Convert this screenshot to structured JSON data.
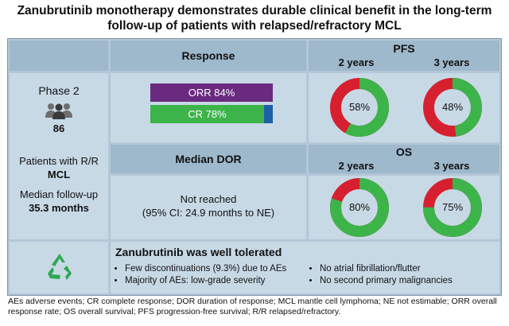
{
  "title": "Zanubrutinib monotherapy demonstrates durable clinical benefit in the long-term follow-up of patients with relapsed/refractory MCL",
  "response_header": "Response",
  "pfs": {
    "header": "PFS",
    "y2_label": "2 years",
    "y3_label": "3 years",
    "y2_value": "58%",
    "y3_value": "48%",
    "y2_fraction": 0.58,
    "y3_fraction": 0.48
  },
  "os": {
    "header": "OS",
    "y2_label": "2 years",
    "y3_label": "3 years",
    "y2_value": "80%",
    "y3_value": "75%",
    "y2_fraction": 0.8,
    "y3_fraction": 0.75
  },
  "phase": {
    "label": "Phase 2",
    "count": "86"
  },
  "patients": {
    "line1": "Patients with R/R",
    "line2": "MCL"
  },
  "followup": {
    "line1": "Median follow-up",
    "line2": "35.3 months"
  },
  "orr": {
    "label": "ORR 84%",
    "value": 84
  },
  "cr": {
    "label": "CR 78%",
    "value": 78
  },
  "dor": {
    "header": "Median DOR",
    "line1": "Not reached",
    "line2": "(95% CI: 24.9 months to NE)"
  },
  "tolerance": {
    "title": "Zanubrutinib was well tolerated",
    "left": [
      "Few discontinuations (9.3%) due to AEs",
      "Majority of AEs: low-grade severity"
    ],
    "right": [
      "No atrial fibrillation/flutter",
      "No second primary malignancies"
    ]
  },
  "footnote": "AEs adverse events; CR complete response; DOR duration of response; MCL mantle cell lymphoma; NE not estimable; ORR overall response rate; OS overall survival; PFS progression-free survival; R/R relapsed/refractory.",
  "colors": {
    "green": "#3cb44a",
    "red": "#d7202f",
    "purple": "#6a2a80",
    "blue": "#1d5fa8",
    "header_bg": "#9eb8cc",
    "cell_bg": "#c8d9e6"
  },
  "icons": [
    "people-icon",
    "recycle-icon"
  ]
}
